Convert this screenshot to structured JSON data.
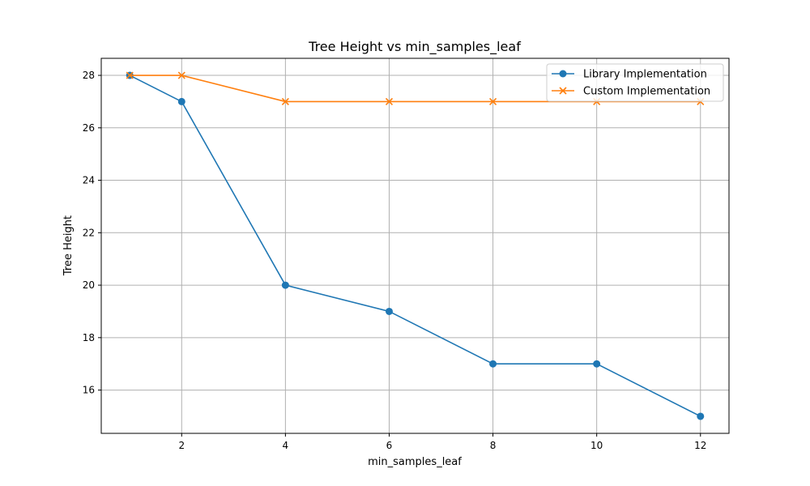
{
  "chart_data": {
    "type": "line",
    "title": "Tree Height vs min_samples_leaf",
    "xlabel": "min_samples_leaf",
    "ylabel": "Tree Height",
    "x": [
      1,
      2,
      4,
      6,
      8,
      10,
      12
    ],
    "xticks": [
      2,
      4,
      6,
      8,
      10,
      12
    ],
    "yticks": [
      16,
      18,
      20,
      22,
      24,
      26,
      28
    ],
    "xlim": [
      0.45,
      12.55
    ],
    "ylim": [
      14.35,
      28.65
    ],
    "grid": true,
    "legend_position": "top-right",
    "series": [
      {
        "name": "Library Implementation",
        "marker": "circle",
        "color": "#1f77b4",
        "values": [
          28,
          27,
          20,
          19,
          17,
          17,
          15
        ]
      },
      {
        "name": "Custom Implementation",
        "marker": "x",
        "color": "#ff7f0e",
        "values": [
          28,
          28,
          27,
          27,
          27,
          27,
          27
        ]
      }
    ]
  }
}
